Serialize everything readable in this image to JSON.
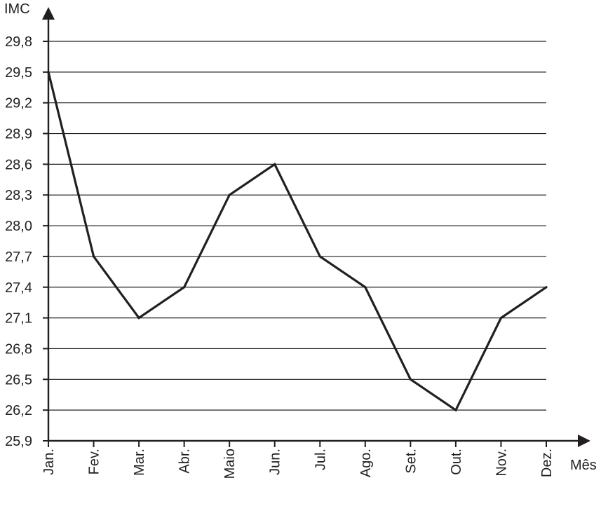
{
  "chart_data": {
    "type": "line",
    "ylabel": "IMC",
    "xlabel": "Mês",
    "categories": [
      "Jan.",
      "Fev.",
      "Mar.",
      "Abr.",
      "Maio",
      "Jun.",
      "Jul.",
      "Ago.",
      "Set.",
      "Out.",
      "Nov.",
      "Dez."
    ],
    "series": [
      {
        "values": [
          29.5,
          27.7,
          27.1,
          27.4,
          28.3,
          28.6,
          27.7,
          27.4,
          26.5,
          26.2,
          27.1,
          27.4
        ]
      }
    ],
    "y_ticks": [
      "25,9",
      "26,2",
      "26,5",
      "26,8",
      "27,1",
      "27,4",
      "27,7",
      "28,0",
      "28,3",
      "28,6",
      "28,9",
      "29,2",
      "29,5",
      "29,8"
    ],
    "ylim": [
      25.9,
      29.8
    ],
    "grid": true,
    "colors": {
      "ink": "#231f20"
    }
  }
}
